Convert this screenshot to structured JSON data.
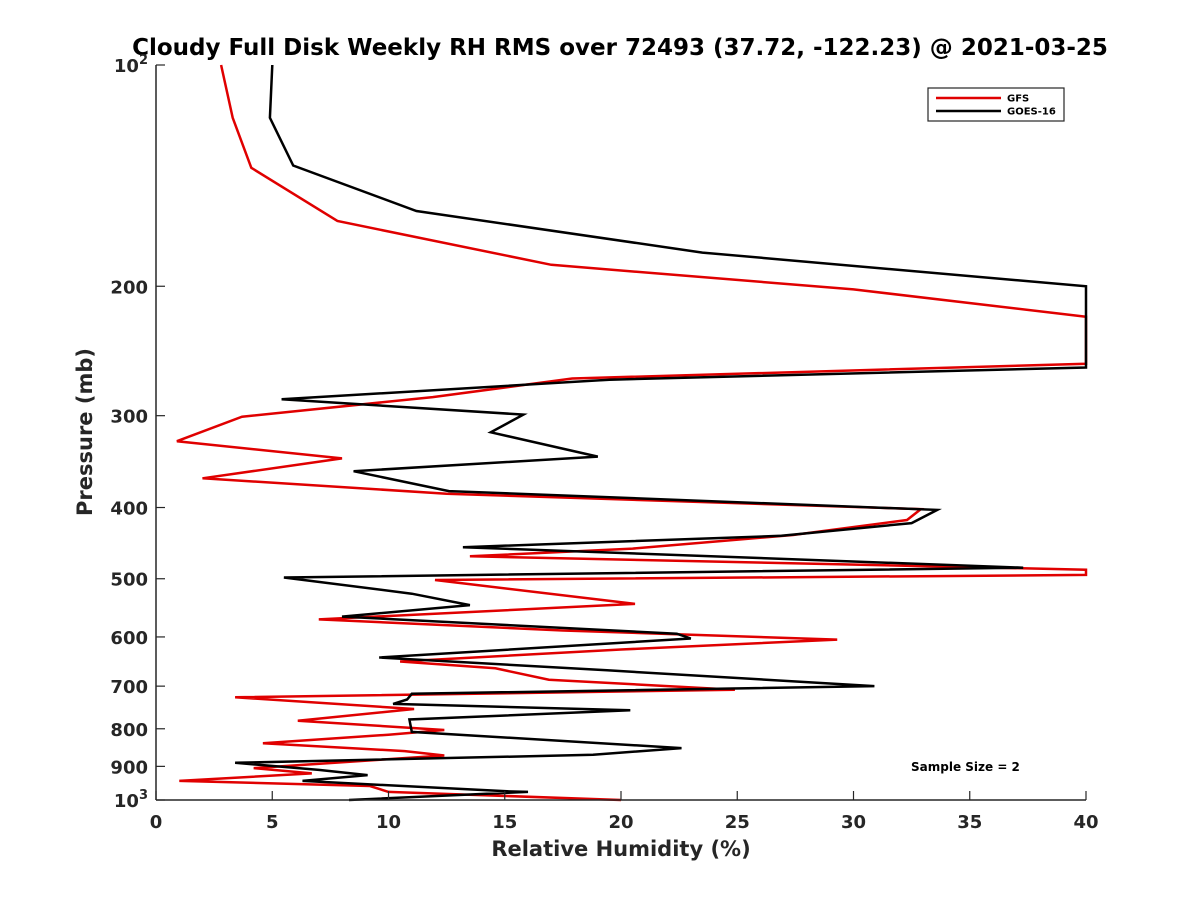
{
  "chart_data": {
    "type": "line",
    "title": "Cloudy Full Disk Weekly RH RMS over 72493 (37.72, -122.23) @ 2021-03-25",
    "xlabel": "Relative Humidity (%)",
    "ylabel": "Pressure (mb)",
    "xlim": [
      0,
      40
    ],
    "ylim": [
      100,
      1000
    ],
    "y_scale": "log",
    "y_reversed": true,
    "grid": false,
    "legend_position": "top-right",
    "x_ticks": [
      "0",
      "5",
      "10",
      "15",
      "20",
      "25",
      "30",
      "35",
      "40"
    ],
    "y_ticks": [
      {
        "value": 100,
        "base": "10",
        "exp": "2"
      },
      {
        "value": 200,
        "base": "200",
        "exp": ""
      },
      {
        "value": 300,
        "base": "300",
        "exp": ""
      },
      {
        "value": 400,
        "base": "400",
        "exp": ""
      },
      {
        "value": 500,
        "base": "500",
        "exp": ""
      },
      {
        "value": 600,
        "base": "600",
        "exp": ""
      },
      {
        "value": 700,
        "base": "700",
        "exp": ""
      },
      {
        "value": 800,
        "base": "800",
        "exp": ""
      },
      {
        "value": 900,
        "base": "900",
        "exp": ""
      },
      {
        "value": 1000,
        "base": "10",
        "exp": "3"
      }
    ],
    "annotation": "Sample Size = 2",
    "series": [
      {
        "name": "GFS",
        "color": "#e00000",
        "points": [
          [
            2.8,
            100
          ],
          [
            3.3,
            118
          ],
          [
            4.1,
            138
          ],
          [
            7.8,
            163
          ],
          [
            17.0,
            187
          ],
          [
            30.0,
            202
          ],
          [
            40.0,
            220
          ],
          [
            40.0,
            255
          ],
          [
            17.9,
            267
          ],
          [
            11.9,
            283
          ],
          [
            3.7,
            301
          ],
          [
            0.9,
            325
          ],
          [
            8.0,
            343
          ],
          [
            2.0,
            365
          ],
          [
            12.5,
            383
          ],
          [
            32.9,
            402
          ],
          [
            32.3,
            416
          ],
          [
            27.4,
            436
          ],
          [
            20.5,
            455
          ],
          [
            13.5,
            466
          ],
          [
            40.0,
            486
          ],
          [
            40.0,
            494
          ],
          [
            12.0,
            502
          ],
          [
            20.6,
            541
          ],
          [
            7.0,
            568
          ],
          [
            17.5,
            588
          ],
          [
            29.3,
            605
          ],
          [
            20.0,
            624
          ],
          [
            10.5,
            648
          ],
          [
            14.6,
            662
          ],
          [
            16.9,
            686
          ],
          [
            24.9,
            708
          ],
          [
            3.4,
            725
          ],
          [
            11.1,
            752
          ],
          [
            6.1,
            780
          ],
          [
            12.4,
            803
          ],
          [
            10.0,
            815
          ],
          [
            4.6,
            837
          ],
          [
            10.7,
            858
          ],
          [
            12.4,
            870
          ],
          [
            4.2,
            905
          ],
          [
            6.7,
            920
          ],
          [
            1.0,
            942
          ],
          [
            9.2,
            957
          ],
          [
            10.0,
            975
          ],
          [
            20.0,
            1000
          ]
        ]
      },
      {
        "name": "GOES-16",
        "color": "#000000",
        "points": [
          [
            5.0,
            100
          ],
          [
            4.9,
            118
          ],
          [
            5.9,
            137
          ],
          [
            11.2,
            158
          ],
          [
            23.5,
            180
          ],
          [
            40.0,
            200
          ],
          [
            40.0,
            258
          ],
          [
            19.5,
            268
          ],
          [
            5.4,
            285
          ],
          [
            15.8,
            299
          ],
          [
            14.4,
            316
          ],
          [
            19.0,
            341
          ],
          [
            8.5,
            357
          ],
          [
            12.6,
            380
          ],
          [
            33.6,
            403
          ],
          [
            32.5,
            420
          ],
          [
            26.9,
            437
          ],
          [
            13.2,
            453
          ],
          [
            37.3,
            483
          ],
          [
            5.5,
            498
          ],
          [
            11.0,
            524
          ],
          [
            13.5,
            543
          ],
          [
            8.0,
            563
          ],
          [
            22.4,
            594
          ],
          [
            23.0,
            603
          ],
          [
            9.6,
            640
          ],
          [
            19.4,
            666
          ],
          [
            30.9,
            700
          ],
          [
            11.0,
            717
          ],
          [
            10.8,
            730
          ],
          [
            10.2,
            740
          ],
          [
            20.4,
            755
          ],
          [
            10.9,
            777
          ],
          [
            11.0,
            808
          ],
          [
            22.6,
            850
          ],
          [
            18.8,
            868
          ],
          [
            3.4,
            890
          ],
          [
            7.0,
            910
          ],
          [
            9.1,
            925
          ],
          [
            6.3,
            942
          ],
          [
            15.1,
            973
          ],
          [
            16.0,
            975
          ],
          [
            8.3,
            1000
          ]
        ]
      }
    ]
  }
}
